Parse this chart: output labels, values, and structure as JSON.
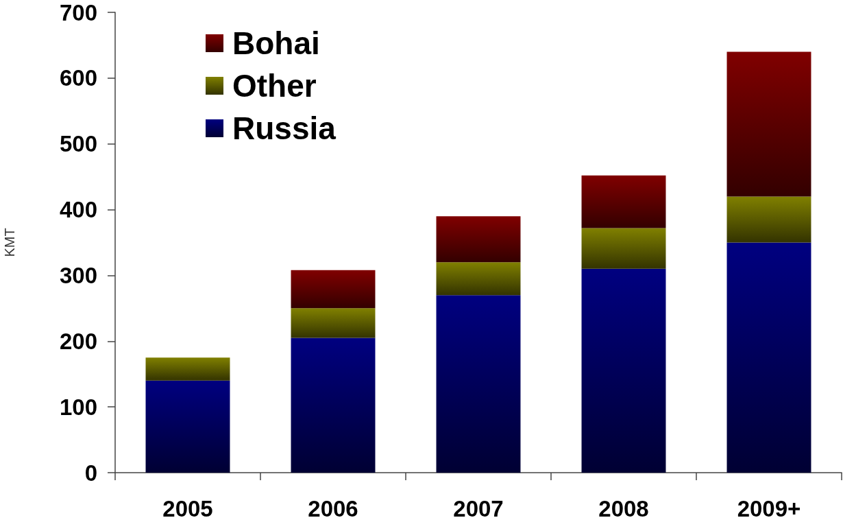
{
  "chart_data": {
    "type": "bar",
    "stacked": true,
    "ylabel": "KMT",
    "categories": [
      "2005",
      "2006",
      "2007",
      "2008",
      "2009+"
    ],
    "series": [
      {
        "name": "Russia",
        "color": "#000080",
        "values": [
          140,
          205,
          270,
          310,
          350
        ]
      },
      {
        "name": "Other",
        "color": "#808000",
        "values": [
          35,
          45,
          50,
          62,
          70
        ]
      },
      {
        "name": "Bohai",
        "color": "#800000",
        "values": [
          null,
          58,
          70,
          80,
          220
        ]
      }
    ],
    "ylim": [
      0,
      700
    ],
    "yticks": [
      0,
      100,
      200,
      300,
      400,
      500,
      600,
      700
    ],
    "grid": false,
    "legend": "top left"
  }
}
